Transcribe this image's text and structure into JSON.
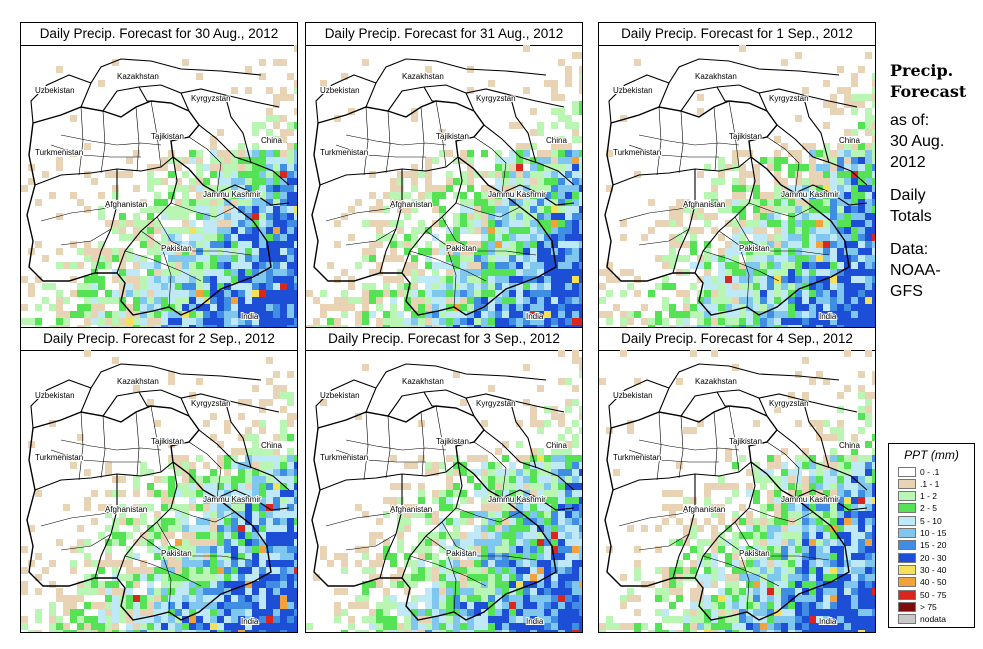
{
  "panels": [
    {
      "title": "Daily Precip. Forecast for  30 Aug., 2012",
      "seed": 11,
      "heavy": 0.55
    },
    {
      "title": "Daily Precip. Forecast for  31 Aug., 2012",
      "seed": 23,
      "heavy": 0.45
    },
    {
      "title": "Daily Precip. Forecast for  1 Sep., 2012",
      "seed": 37,
      "heavy": 0.6
    },
    {
      "title": "Daily Precip. Forecast for  2 Sep., 2012",
      "seed": 41,
      "heavy": 0.75
    },
    {
      "title": "Daily Precip. Forecast for  3 Sep., 2012",
      "seed": 53,
      "heavy": 0.55
    },
    {
      "title": "Daily Precip. Forecast for  4 Sep., 2012",
      "seed": 67,
      "heavy": 0.7
    }
  ],
  "map_labels": {
    "uzbekistan": "Uzbekistan",
    "kazakhstan": "Kazakhstan",
    "kyrgyzstan": "Kyrgyzstan",
    "tajikistan": "Tajikistan",
    "turkmenistan": "Turkmenistan",
    "china": "China",
    "afghanistan": "Afghanistan",
    "jammu_kashmir": "Jammu Kashmir",
    "pakistan": "Pakistan",
    "india": "India"
  },
  "side": {
    "title_line1": "Precip.",
    "title_line2": "Forecast",
    "asof_line1": "as of:",
    "asof_line2": "30 Aug.",
    "asof_line3": "2012",
    "daily_line1": "Daily",
    "daily_line2": "Totals",
    "data_line1": "Data:",
    "data_line2": "NOAA-",
    "data_line3": "GFS"
  },
  "legend": {
    "title": "PPT (mm)",
    "items": [
      {
        "label": "0 - .1",
        "color": "#ffffff"
      },
      {
        "label": ".1 - 1",
        "color": "#e9d3b5"
      },
      {
        "label": "1 - 2",
        "color": "#b9f5b3"
      },
      {
        "label": "2 - 5",
        "color": "#55e255"
      },
      {
        "label": "5 - 10",
        "color": "#bfe9f7"
      },
      {
        "label": "10 - 15",
        "color": "#7fc7ee"
      },
      {
        "label": "15 - 20",
        "color": "#3f8ee3"
      },
      {
        "label": "20 - 30",
        "color": "#1d4fd6"
      },
      {
        "label": "30 - 40",
        "color": "#f5e05a"
      },
      {
        "label": "40 - 50",
        "color": "#f2a23b"
      },
      {
        "label": "50 - 75",
        "color": "#d9261f"
      },
      {
        "label": "> 75",
        "color": "#7e0d0d"
      },
      {
        "label": "nodata",
        "color": "#c8c8c8"
      }
    ]
  }
}
